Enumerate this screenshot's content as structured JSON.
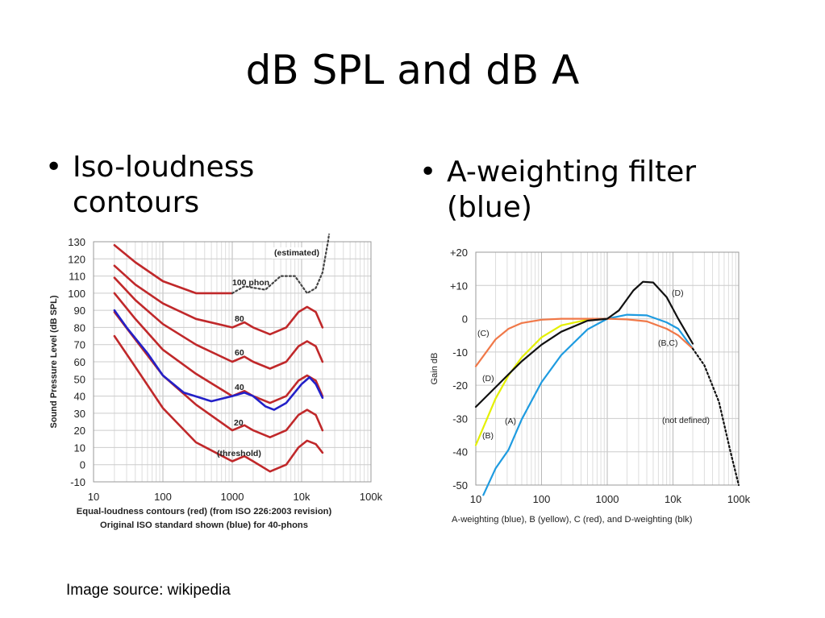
{
  "slide": {
    "title": "dB SPL and dB A",
    "bullets": [
      {
        "mark": "•",
        "text": "Iso-loudness contours"
      },
      {
        "mark": "•",
        "text": "A-weighting filter (blue)"
      }
    ],
    "source": "Image source: wikipedia"
  },
  "chart_data": [
    {
      "type": "line",
      "x_scale": "log",
      "xlim": [
        10,
        100000
      ],
      "ylim": [
        -10,
        130
      ],
      "grid": true,
      "xticks": [
        "10",
        "100",
        "1000",
        "10k",
        "100k"
      ],
      "yticks": [
        "130",
        "120",
        "110",
        "100",
        "90",
        "80",
        "70",
        "60",
        "50",
        "40",
        "30",
        "20",
        "10",
        "0",
        "-10"
      ],
      "ylabel": "Sound Pressure Level (dB SPL)",
      "caption_lines": [
        "Equal-loudness contours (red) (from ISO 226:2003 revision)",
        "Original ISO standard shown (blue) for 40-phons"
      ],
      "annotations": [
        "(estimated)",
        "100 phon",
        "80",
        "60",
        "40",
        "20",
        "(threshold)"
      ],
      "colors": {
        "iso226": "#c0282a",
        "original": "#2320c8",
        "estimated": "#444444"
      },
      "series": [
        {
          "color": "#c0282a",
          "x": [
            20,
            40,
            100,
            300,
            1000
          ],
          "y": [
            128,
            118,
            107,
            100,
            100
          ]
        },
        {
          "color": "#444444",
          "style": "dotted",
          "x": [
            1000,
            1500,
            3000,
            5000,
            8000,
            12000,
            16000,
            20000,
            24000,
            25000
          ],
          "y": [
            100,
            104,
            102,
            110,
            110,
            100,
            103,
            112,
            130,
            135
          ]
        },
        {
          "color": "#c0282a",
          "x": [
            20,
            40,
            100,
            300,
            1000,
            1500,
            2000,
            3500,
            6000,
            9000,
            12000,
            16000,
            20000
          ],
          "y": [
            116,
            105,
            94,
            85,
            80,
            83,
            80,
            76,
            80,
            89,
            92,
            89,
            80
          ]
        },
        {
          "color": "#c0282a",
          "x": [
            20,
            40,
            100,
            300,
            1000,
            1500,
            2000,
            3500,
            6000,
            9000,
            12000,
            16000,
            20000
          ],
          "y": [
            109,
            96,
            82,
            70,
            60,
            63,
            60,
            56,
            60,
            69,
            72,
            69,
            60
          ]
        },
        {
          "color": "#c0282a",
          "x": [
            20,
            40,
            100,
            300,
            1000,
            1500,
            2000,
            3500,
            6000,
            9000,
            12000,
            16000,
            20000
          ],
          "y": [
            100,
            85,
            67,
            53,
            40,
            43,
            40,
            36,
            40,
            49,
            52,
            49,
            40
          ]
        },
        {
          "color": "#c0282a",
          "x": [
            20,
            40,
            100,
            300,
            1000,
            1500,
            2000,
            3500,
            6000,
            9000,
            12000,
            16000,
            20000
          ],
          "y": [
            89,
            73,
            52,
            35,
            20,
            23,
            20,
            16,
            20,
            29,
            32,
            29,
            20
          ]
        },
        {
          "color": "#c0282a",
          "x": [
            20,
            40,
            100,
            300,
            1000,
            1500,
            2000,
            3500,
            6000,
            9000,
            12000,
            16000,
            20000
          ],
          "y": [
            75,
            57,
            33,
            13,
            2,
            5,
            2,
            -4,
            0,
            10,
            14,
            12,
            7
          ]
        },
        {
          "color": "#2320c8",
          "x": [
            20,
            30,
            60,
            100,
            200,
            500,
            1000,
            1500,
            2000,
            3000,
            4000,
            6000,
            10000,
            13000,
            16000,
            20000
          ],
          "y": [
            90,
            80,
            65,
            52,
            42,
            37,
            40,
            42,
            40,
            34,
            32,
            36,
            47,
            51,
            47,
            39
          ]
        }
      ]
    },
    {
      "type": "line",
      "x_scale": "log",
      "xlim": [
        10,
        100000
      ],
      "ylim": [
        -50,
        20
      ],
      "grid": true,
      "xticks": [
        "10",
        "100",
        "1000",
        "10k",
        "100k"
      ],
      "yticks": [
        "+20",
        "+10",
        "0",
        "-10",
        "-20",
        "-30",
        "-40",
        "-50"
      ],
      "ylabel": "Gain dB",
      "caption": "A-weighting (blue), B (yellow), C (red), and D-weighting (blk)",
      "annotations": [
        "(C)",
        "(D)",
        "(A)",
        "(B)",
        "(D)",
        "(B,C)",
        "(not defined)"
      ],
      "colors": {
        "A": "#1e9be0",
        "B": "#e4f000",
        "C": "#f07848",
        "D": "#111111"
      },
      "series": [
        {
          "name": "(A)",
          "color": "#1e9be0",
          "x": [
            13,
            20,
            31.5,
            50,
            100,
            200,
            500,
            1000,
            2000,
            4000,
            8000,
            12000,
            20000
          ],
          "y": [
            -53,
            -45,
            -39.4,
            -30.2,
            -19.1,
            -10.9,
            -3.2,
            0,
            1.2,
            1,
            -1.1,
            -3,
            -9
          ]
        },
        {
          "name": "(B)",
          "color": "#e4f000",
          "x": [
            10,
            20,
            31.5,
            50,
            100,
            200,
            500,
            1000
          ],
          "y": [
            -38,
            -24,
            -17,
            -11.6,
            -5.6,
            -2,
            -0.3,
            0
          ]
        },
        {
          "name": "(C)",
          "color": "#f07848",
          "x": [
            10,
            20,
            31.5,
            50,
            100,
            200,
            500,
            1000,
            2000,
            4000,
            8000,
            12000,
            20000
          ],
          "y": [
            -14.3,
            -6.2,
            -3,
            -1.3,
            -0.3,
            0,
            0,
            0,
            -0.2,
            -0.8,
            -3,
            -5,
            -9
          ]
        },
        {
          "name": "(D)",
          "color": "#111111",
          "x": [
            10,
            20,
            31.5,
            50,
            100,
            200,
            500,
            1000,
            1500,
            2500,
            3500,
            5000,
            8000,
            12000,
            20000
          ],
          "y": [
            -26.5,
            -20.6,
            -16.7,
            -12.8,
            -7.8,
            -3.9,
            -0.6,
            0,
            2.5,
            8.5,
            11.1,
            10.9,
            6.5,
            0,
            -7.5
          ]
        },
        {
          "name": "(not defined)",
          "color": "#111111",
          "style": "dotted",
          "x": [
            20000,
            30000,
            50000,
            75000,
            100000
          ],
          "y": [
            -9,
            -14,
            -25,
            -40,
            -50
          ]
        }
      ]
    }
  ]
}
